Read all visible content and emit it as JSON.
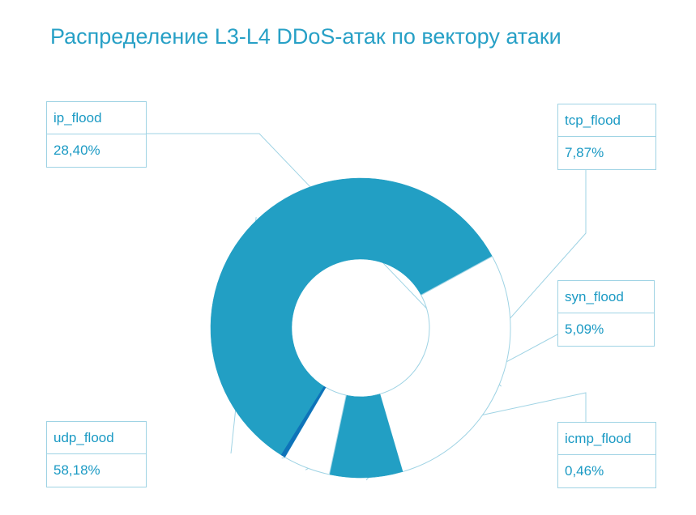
{
  "chart_data": {
    "type": "pie",
    "title": "Распределение L3-L4 DDoS-атак по вектору атаки",
    "categories": [
      "udp_flood",
      "ip_flood",
      "tcp_flood",
      "syn_flood",
      "icmp_flood"
    ],
    "values": [
      58.18,
      28.4,
      7.87,
      5.09,
      0.46
    ],
    "value_labels": [
      "58,18%",
      "28,40%",
      "7,87%",
      "5,09%",
      "0,46%"
    ],
    "colors": [
      "#229fc4",
      "#ffffff",
      "#229fc4",
      "#ffffff",
      "#0e73b9"
    ],
    "legend": "callout-boxes"
  }
}
